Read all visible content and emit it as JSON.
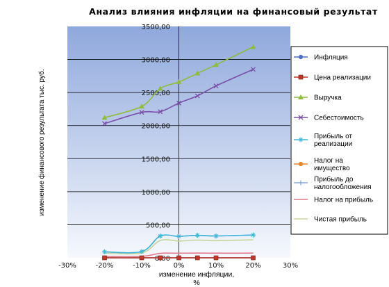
{
  "chart_data": {
    "type": "line",
    "title": "Анализ влияния инфляции на финансовый результат",
    "xlabel": [
      "изменение инфляции,",
      "%"
    ],
    "ylabel": "изменение финансового результата    тыс. руб.",
    "xlim": [
      -0.3,
      0.3
    ],
    "ylim": [
      0,
      3500
    ],
    "x_tick_labels": [
      "-30%",
      "-20%",
      "-10%",
      "0%",
      "10%",
      "20%",
      "30%"
    ],
    "x_tick_values": [
      -0.3,
      -0.2,
      -0.1,
      0,
      0.1,
      0.2,
      0.3
    ],
    "y_tick_labels": [
      "0,00",
      "500,00",
      "1000,00",
      "1500,00",
      "2000,00",
      "2500,00",
      "3000,00",
      "3500,00"
    ],
    "y_tick_values": [
      0,
      500,
      1000,
      1500,
      2000,
      2500,
      3000,
      3500
    ],
    "x": [
      -0.2,
      -0.1,
      -0.05,
      0,
      0.05,
      0.1,
      0.2
    ],
    "series": [
      {
        "name": "Инфляция",
        "values": [
          0,
          0,
          0,
          0,
          0,
          0,
          0
        ],
        "color": "#4a6fc4",
        "marker": "circle",
        "legend_lines": [
          "Инфляция"
        ]
      },
      {
        "name": "Цена реализации",
        "values": [
          0,
          0,
          0,
          0,
          0,
          0,
          0
        ],
        "color": "#c0392b",
        "marker": "square",
        "legend_lines": [
          "Цена реализации"
        ]
      },
      {
        "name": "Выручка",
        "values": [
          2120,
          2290,
          2560,
          2660,
          2790,
          2920,
          3190
        ],
        "color": "#8fbc3f",
        "marker": "triangle",
        "legend_lines": [
          "Выручка"
        ]
      },
      {
        "name": "Себестоимость",
        "values": [
          2030,
          2200,
          2210,
          2340,
          2450,
          2600,
          2850
        ],
        "color": "#7a4fa8",
        "marker": "x",
        "legend_lines": [
          "Себестоимость"
        ]
      },
      {
        "name": "Прибыль от реализации",
        "values": [
          90,
          95,
          330,
          325,
          340,
          330,
          345
        ],
        "color": "#3fb6d8",
        "marker": "star",
        "legend_lines": [
          "Прибыль от",
          "реализации"
        ]
      },
      {
        "name": "Налог на имущество",
        "values": [
          0,
          0,
          0,
          0,
          0,
          0,
          0
        ],
        "color": "#e8862a",
        "marker": "circle",
        "legend_lines": [
          "Налог на",
          "имущество"
        ]
      },
      {
        "name": "Прибыль до налогообложения",
        "values": [
          90,
          95,
          330,
          325,
          340,
          330,
          345
        ],
        "color": "#8aa9d8",
        "marker": "plus",
        "legend_lines": [
          "Прибыль до",
          "налогообложения"
        ]
      },
      {
        "name": "Налог на прибыль",
        "values": [
          20,
          22,
          68,
          70,
          72,
          70,
          72
        ],
        "color": "#e07a8a",
        "marker": "none",
        "legend_lines": [
          "Налог на прибыль"
        ]
      },
      {
        "name": "Чистая прибыль",
        "values": [
          70,
          73,
          262,
          255,
          268,
          260,
          273
        ],
        "color": "#c8d69a",
        "marker": "none",
        "legend_lines": [
          "Чистая прибыль"
        ]
      }
    ],
    "grid": true,
    "legend_position": "right"
  }
}
